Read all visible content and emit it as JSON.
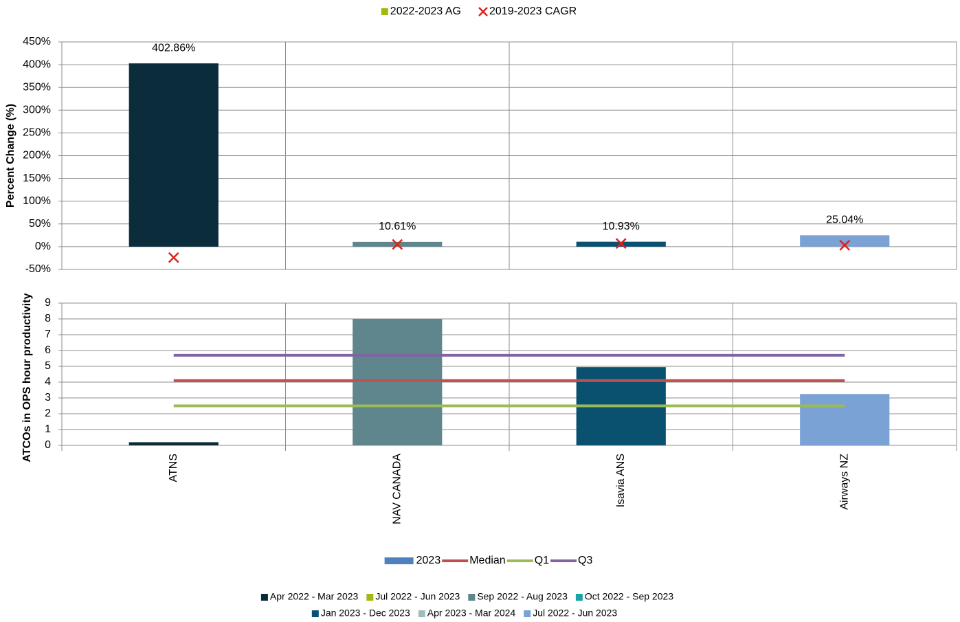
{
  "chart_data": [
    {
      "type": "bar",
      "ylabel": "Percent Change (%)",
      "ylim": [
        -50,
        450
      ],
      "yticks": [
        {
          "value": -50,
          "label": "-50%"
        },
        {
          "value": 0,
          "label": "0%"
        },
        {
          "value": 50,
          "label": "50%"
        },
        {
          "value": 100,
          "label": "100%"
        },
        {
          "value": 150,
          "label": "150%"
        },
        {
          "value": 200,
          "label": "200%"
        },
        {
          "value": 250,
          "label": "250%"
        },
        {
          "value": 300,
          "label": "300%"
        },
        {
          "value": 350,
          "label": "350%"
        },
        {
          "value": 400,
          "label": "400%"
        },
        {
          "value": 450,
          "label": "450%"
        }
      ],
      "grid": true,
      "legend": "top",
      "series": [
        {
          "name": "2022-2023 AG",
          "color": "#a5b80e",
          "values": [
            402.86,
            10.61,
            10.93,
            25.04
          ],
          "value_labels": [
            "402.86%",
            "10.61%",
            "10.93%",
            "25.04%"
          ],
          "colors": [
            "#0b2d3b",
            "#5f868c",
            "#0a5170",
            "#7ba2d4"
          ]
        },
        {
          "name": "2019-2023 CAGR",
          "color": "#e0201b",
          "type": "marker",
          "values": [
            -24,
            5,
            7,
            3
          ]
        }
      ]
    },
    {
      "type": "bar",
      "ylabel": "ATCOs in OPS hour productivity",
      "categories": [
        "ATNS",
        "NAV CANADA",
        "Isavia ANS",
        "Airways NZ"
      ],
      "ylim": [
        0,
        9
      ],
      "yticks": [
        0,
        1,
        2,
        3,
        4,
        5,
        6,
        7,
        8,
        9
      ],
      "grid": true,
      "legend": "bottom",
      "series": [
        {
          "name": "2023",
          "color": "#4f81bd",
          "values": [
            0.2,
            8.0,
            4.95,
            3.25
          ],
          "colors": [
            "#0b2d3b",
            "#5f868c",
            "#0a5170",
            "#7ba2d4"
          ]
        },
        {
          "name": "Median",
          "color": "#c0504d",
          "type": "line",
          "values": [
            4.1,
            4.1,
            4.1,
            4.1
          ]
        },
        {
          "name": "Q1",
          "color": "#9bbb59",
          "type": "line",
          "values": [
            2.5,
            2.5,
            2.5,
            2.5
          ]
        },
        {
          "name": "Q3",
          "color": "#8064a2",
          "type": "line",
          "values": [
            5.7,
            5.7,
            5.7,
            5.7
          ]
        }
      ]
    }
  ],
  "period_legend": [
    {
      "name": "Apr 2022 - Mar 2023",
      "color": "#0b2d3b"
    },
    {
      "name": "Jul 2022 - Jun 2023",
      "color": "#a5b80e"
    },
    {
      "name": "Sep 2022 - Aug 2023",
      "color": "#5f868c"
    },
    {
      "name": "Oct 2022 - Sep 2023",
      "color": "#1aa3a3"
    },
    {
      "name": "Jan 2023 - Dec 2023",
      "color": "#0a5170"
    },
    {
      "name": "Apr 2023 - Mar 2024",
      "color": "#9fbcbc"
    },
    {
      "name": "Jul 2022 - Jun 2023",
      "color": "#7ba2d4"
    }
  ]
}
